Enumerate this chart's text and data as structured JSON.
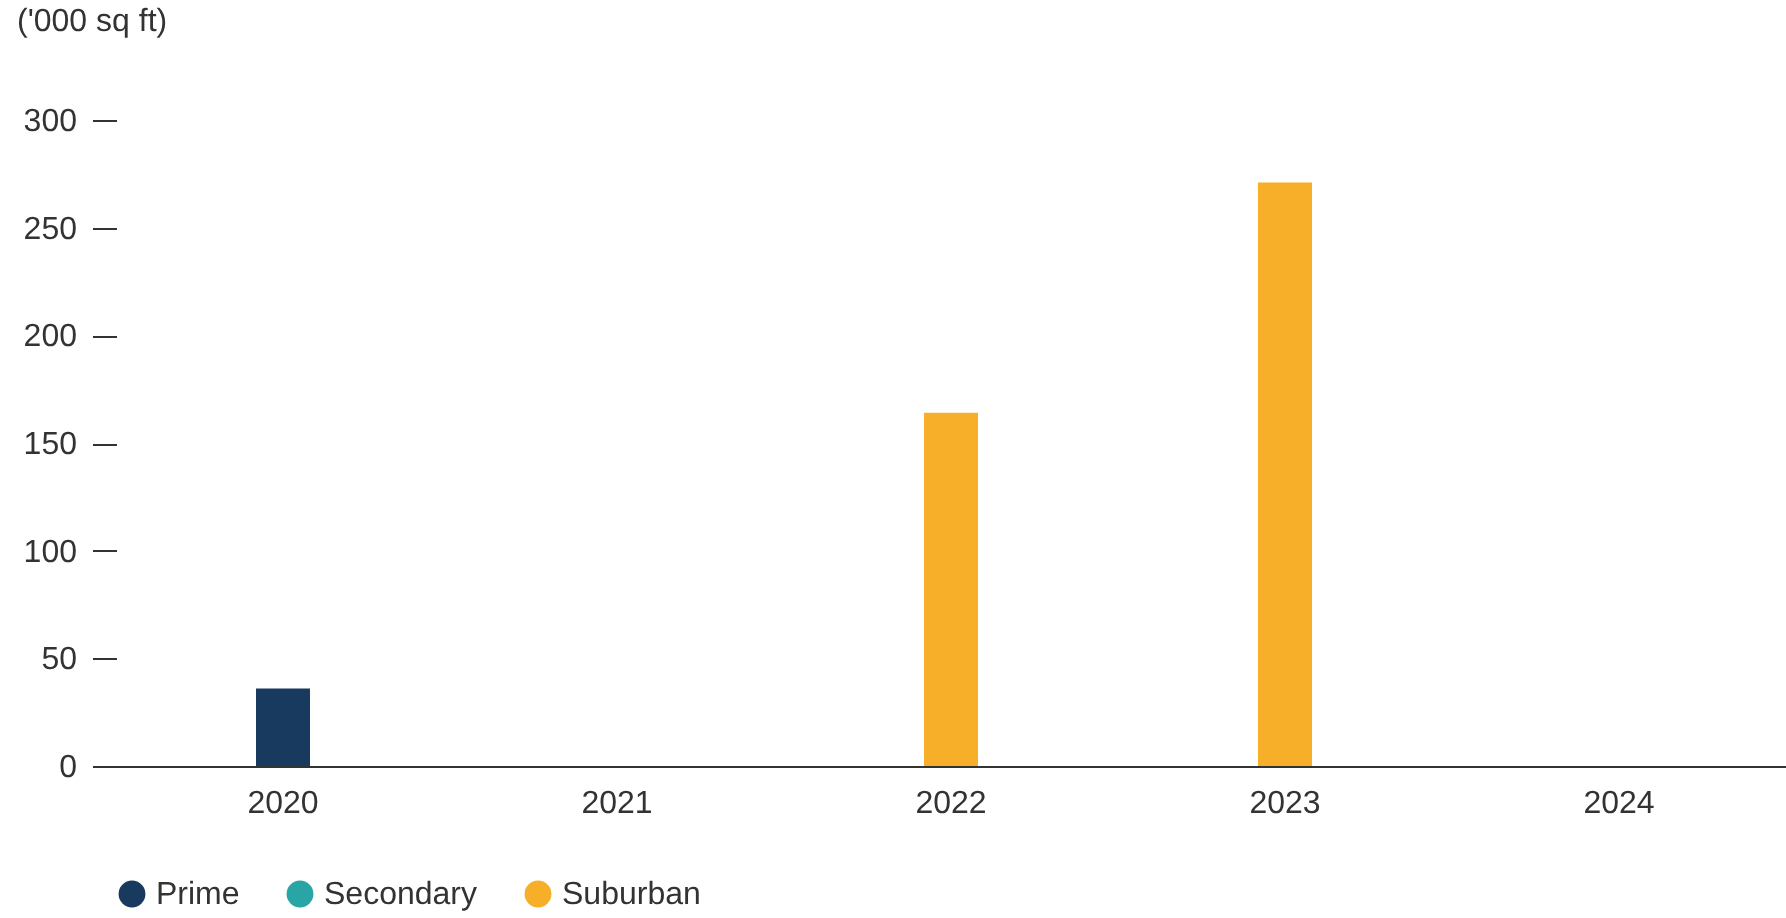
{
  "chart_data": {
    "type": "bar",
    "ylabel": "('000 sq ft)",
    "categories": [
      "2020",
      "2021",
      "2022",
      "2023",
      "2024"
    ],
    "series": [
      {
        "name": "Prime",
        "color": "#173a5e",
        "values": [
          36,
          null,
          null,
          null,
          null
        ]
      },
      {
        "name": "Secondary",
        "color": "#2aa5a5",
        "values": [
          null,
          null,
          null,
          null,
          null
        ]
      },
      {
        "name": "Suburban",
        "color": "#f7ae28",
        "values": [
          null,
          null,
          164,
          271,
          null
        ]
      }
    ],
    "ylim": [
      0,
      300
    ],
    "yticks": [
      0,
      50,
      100,
      150,
      200,
      250,
      300
    ],
    "grid": false,
    "legend": "bottom"
  }
}
